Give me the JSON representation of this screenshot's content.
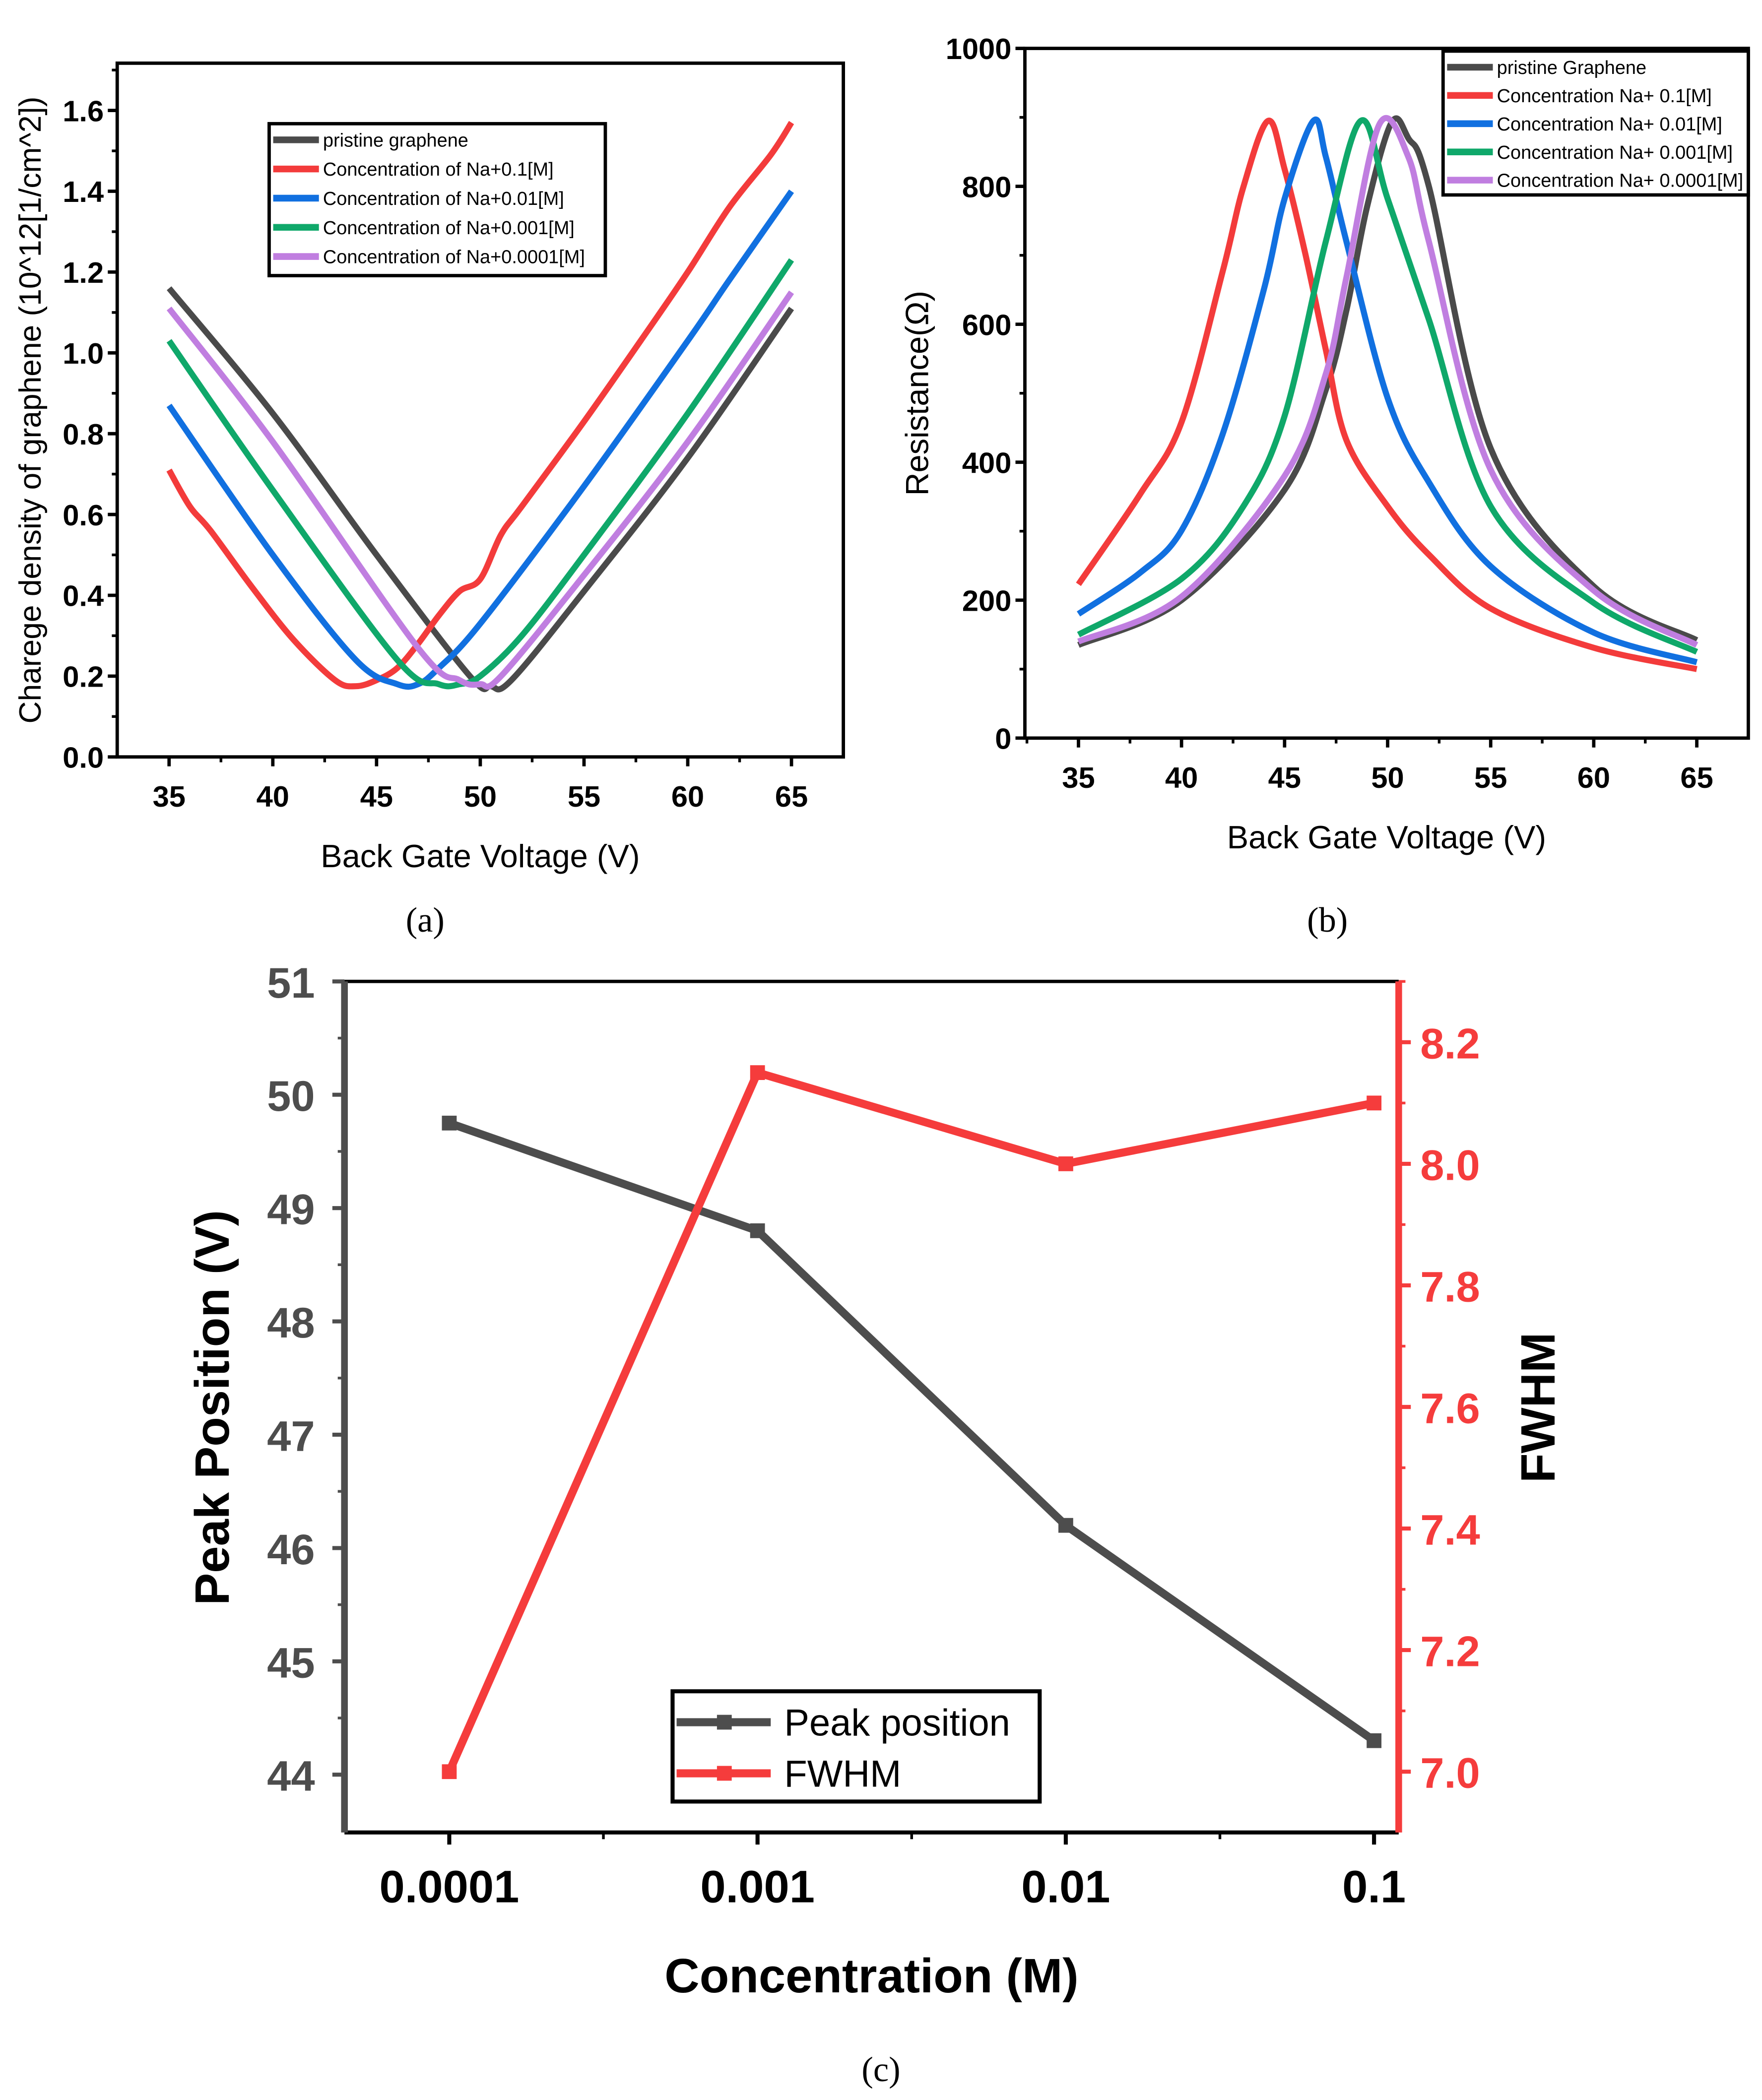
{
  "captions": {
    "a": "(a)",
    "b": "(b)",
    "c": "(c)"
  },
  "colors": {
    "pristine": "#4a4a4a",
    "na_0_1": "#f33b3b",
    "na_0_01": "#1170e0",
    "na_0_001": "#0fa86a",
    "na_0_0001": "#c07ee0",
    "fwhm": "#f53c3c",
    "peak": "#4d4d4d"
  },
  "chart_data": [
    {
      "id": "a",
      "type": "line",
      "xlabel": "Back Gate Voltage (V)",
      "ylabel": "Charege density of graphene (10^12[1/cm^2])",
      "xlim": [
        32.5,
        67.5
      ],
      "ylim": [
        0,
        1.717
      ],
      "xticks": [
        "35",
        "40",
        "45",
        "50",
        "55",
        "60",
        "65"
      ],
      "yticks": [
        "0.0",
        "0.2",
        "0.4",
        "0.6",
        "0.8",
        "1.0",
        "1.2",
        "1.4",
        "1.6"
      ],
      "legend_position": "top-center",
      "series": [
        {
          "name": "pristine graphene",
          "color": "#4a4a4a",
          "x": [
            35,
            40,
            45,
            49.5,
            50.5,
            51.5,
            55,
            60,
            65
          ],
          "y": [
            1.16,
            0.85,
            0.5,
            0.2,
            0.175,
            0.19,
            0.41,
            0.74,
            1.11
          ]
        },
        {
          "name": "Concentration of Na+0.1[M]",
          "color": "#f33b3b",
          "x": [
            35,
            36,
            37,
            39,
            41,
            43,
            44,
            45,
            46,
            47,
            48,
            49,
            50,
            51,
            52,
            55,
            58,
            60,
            62,
            64,
            65
          ],
          "y": [
            0.71,
            0.62,
            0.56,
            0.42,
            0.29,
            0.19,
            0.175,
            0.19,
            0.22,
            0.28,
            0.35,
            0.41,
            0.44,
            0.55,
            0.62,
            0.83,
            1.05,
            1.2,
            1.36,
            1.49,
            1.57
          ]
        },
        {
          "name": "Concentration of Na+0.01[M]",
          "color": "#1170e0",
          "x": [
            35,
            40,
            44,
            46,
            47,
            48,
            50,
            55,
            60,
            62,
            65
          ],
          "y": [
            0.87,
            0.5,
            0.24,
            0.18,
            0.18,
            0.22,
            0.33,
            0.67,
            1.03,
            1.18,
            1.4
          ]
        },
        {
          "name": "Concentration of Na+0.001[M]",
          "color": "#0fa86a",
          "x": [
            35,
            40,
            46,
            48,
            49,
            50,
            52,
            55,
            60,
            65
          ],
          "y": [
            1.03,
            0.66,
            0.24,
            0.18,
            0.18,
            0.2,
            0.3,
            0.5,
            0.85,
            1.23
          ]
        },
        {
          "name": "Concentration of Na+0.0001[M]",
          "color": "#c07ee0",
          "x": [
            35,
            40,
            47,
            49,
            50,
            51,
            55,
            60,
            65
          ],
          "y": [
            1.11,
            0.78,
            0.27,
            0.19,
            0.18,
            0.2,
            0.45,
            0.78,
            1.15
          ]
        }
      ]
    },
    {
      "id": "b",
      "type": "line",
      "xlabel": "Back Gate Voltage (V)",
      "ylabel": "Resistance(Ω)",
      "xlim": [
        32.4,
        67.5
      ],
      "ylim": [
        0,
        1000
      ],
      "xticks": [
        "35",
        "40",
        "45",
        "50",
        "55",
        "60",
        "65"
      ],
      "yticks": [
        "0",
        "200",
        "400",
        "600",
        "800",
        "1000"
      ],
      "legend_position": "top-right",
      "series": [
        {
          "name": "pristine Graphene",
          "color": "#4a4a4a",
          "x": [
            35,
            40,
            45,
            47,
            48,
            49,
            50.2,
            51,
            52,
            55,
            60,
            65
          ],
          "y": [
            135,
            200,
            360,
            505,
            620,
            770,
            893,
            870,
            800,
            420,
            220,
            142
          ]
        },
        {
          "name": "Concentration Na+ 0.1[M]",
          "color": "#f33b3b",
          "x": [
            35,
            38,
            40,
            42,
            43,
            44.2,
            45,
            46,
            47,
            48,
            50,
            52,
            55,
            60,
            65
          ],
          "y": [
            223,
            354,
            458,
            677,
            799,
            895,
            825,
            703,
            563,
            432,
            336,
            266,
            188,
            131,
            100
          ]
        },
        {
          "name": "Concentration Na+ 0.01[M]",
          "color": "#1170e0",
          "x": [
            35,
            38,
            40,
            42,
            44,
            45,
            46.4,
            47,
            48,
            50,
            52,
            55,
            60,
            65
          ],
          "y": [
            180,
            240,
            301,
            441,
            651,
            782,
            895,
            843,
            720,
            493,
            371,
            249,
            153,
            110
          ]
        },
        {
          "name": "Concentration Na+ 0.001[M]",
          "color": "#0fa86a",
          "x": [
            35,
            40,
            43,
            45,
            47,
            48.7,
            50,
            52,
            55,
            60,
            65
          ],
          "y": [
            150,
            231,
            336,
            467,
            720,
            895,
            782,
            607,
            336,
            196,
            125
          ]
        },
        {
          "name": "Concentration Na+ 0.0001[M]",
          "color": "#c07ee0",
          "x": [
            35,
            40,
            45,
            47,
            48,
            49.6,
            51,
            52,
            55,
            60,
            65
          ],
          "y": [
            140,
            205,
            380,
            528,
            668,
            890,
            843,
            720,
            389,
            214,
            135
          ]
        }
      ]
    },
    {
      "id": "c",
      "type": "line",
      "xlabel": "Concentration (M)",
      "ylabel": "Peak Position (V)",
      "ylabel_right": "FWHM",
      "categories": [
        "0.0001",
        "0.001",
        "0.01",
        "0.1"
      ],
      "ylim": [
        43.49,
        51
      ],
      "ylim_right": [
        6.9,
        8.3
      ],
      "yticks": [
        "44",
        "45",
        "46",
        "47",
        "48",
        "49",
        "50",
        "51"
      ],
      "yticks_right": [
        "7.0",
        "7.2",
        "7.4",
        "7.6",
        "7.8",
        "8.0",
        "8.2"
      ],
      "legend_position": "bottom-center",
      "series": [
        {
          "name": "Peak position",
          "color": "#4d4d4d",
          "axis": "left",
          "values": [
            49.75,
            48.8,
            46.2,
            44.3
          ]
        },
        {
          "name": "FWHM",
          "color": "#f53c3c",
          "axis": "right",
          "values": [
            7.0,
            8.15,
            8.0,
            8.1
          ]
        }
      ]
    }
  ]
}
